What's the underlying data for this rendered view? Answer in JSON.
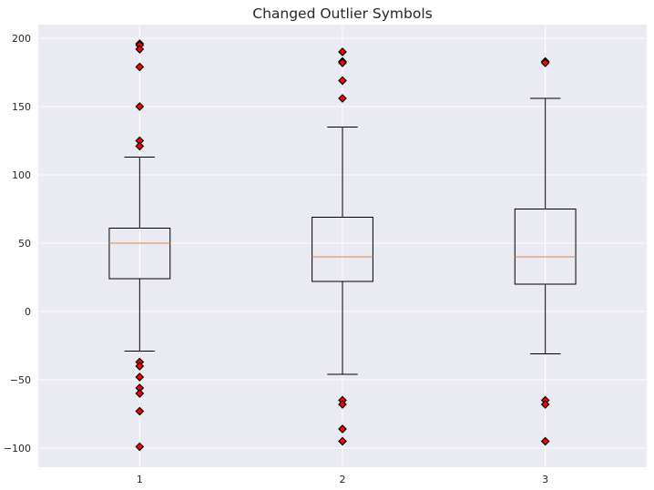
{
  "chart_data": {
    "type": "box",
    "title": "Changed Outlier Symbols",
    "xlabel": "",
    "ylabel": "",
    "categories": [
      "1",
      "2",
      "3"
    ],
    "ylim": [
      -114,
      210
    ],
    "yticks": [
      -100,
      -50,
      0,
      50,
      100,
      150,
      200
    ],
    "grid": true,
    "boxes": [
      {
        "name": "1",
        "whisker_low": -29,
        "q1": 24,
        "median": 50,
        "q3": 61,
        "whisker_high": 113,
        "outliers": [
          196,
          195,
          192,
          179,
          150,
          125,
          121,
          -37,
          -40,
          -48,
          -56,
          -60,
          -73,
          -99
        ]
      },
      {
        "name": "2",
        "whisker_low": -46,
        "q1": 22,
        "median": 40,
        "q3": 69,
        "whisker_high": 135,
        "outliers": [
          190,
          183,
          182,
          169,
          156,
          -65,
          -68,
          -86,
          -95
        ]
      },
      {
        "name": "3",
        "whisker_low": -31,
        "q1": 20,
        "median": 40,
        "q3": 75,
        "whisker_high": 156,
        "outliers": [
          183,
          182,
          -65,
          -68,
          -95
        ]
      }
    ]
  },
  "colors": {
    "background": "#eaeaf2",
    "grid": "#ffffff",
    "box": "#000000",
    "median": "#dd8452",
    "outlier_fill": "#ff0000",
    "outlier_edge": "#000000"
  },
  "outlier_marker": "diamond"
}
